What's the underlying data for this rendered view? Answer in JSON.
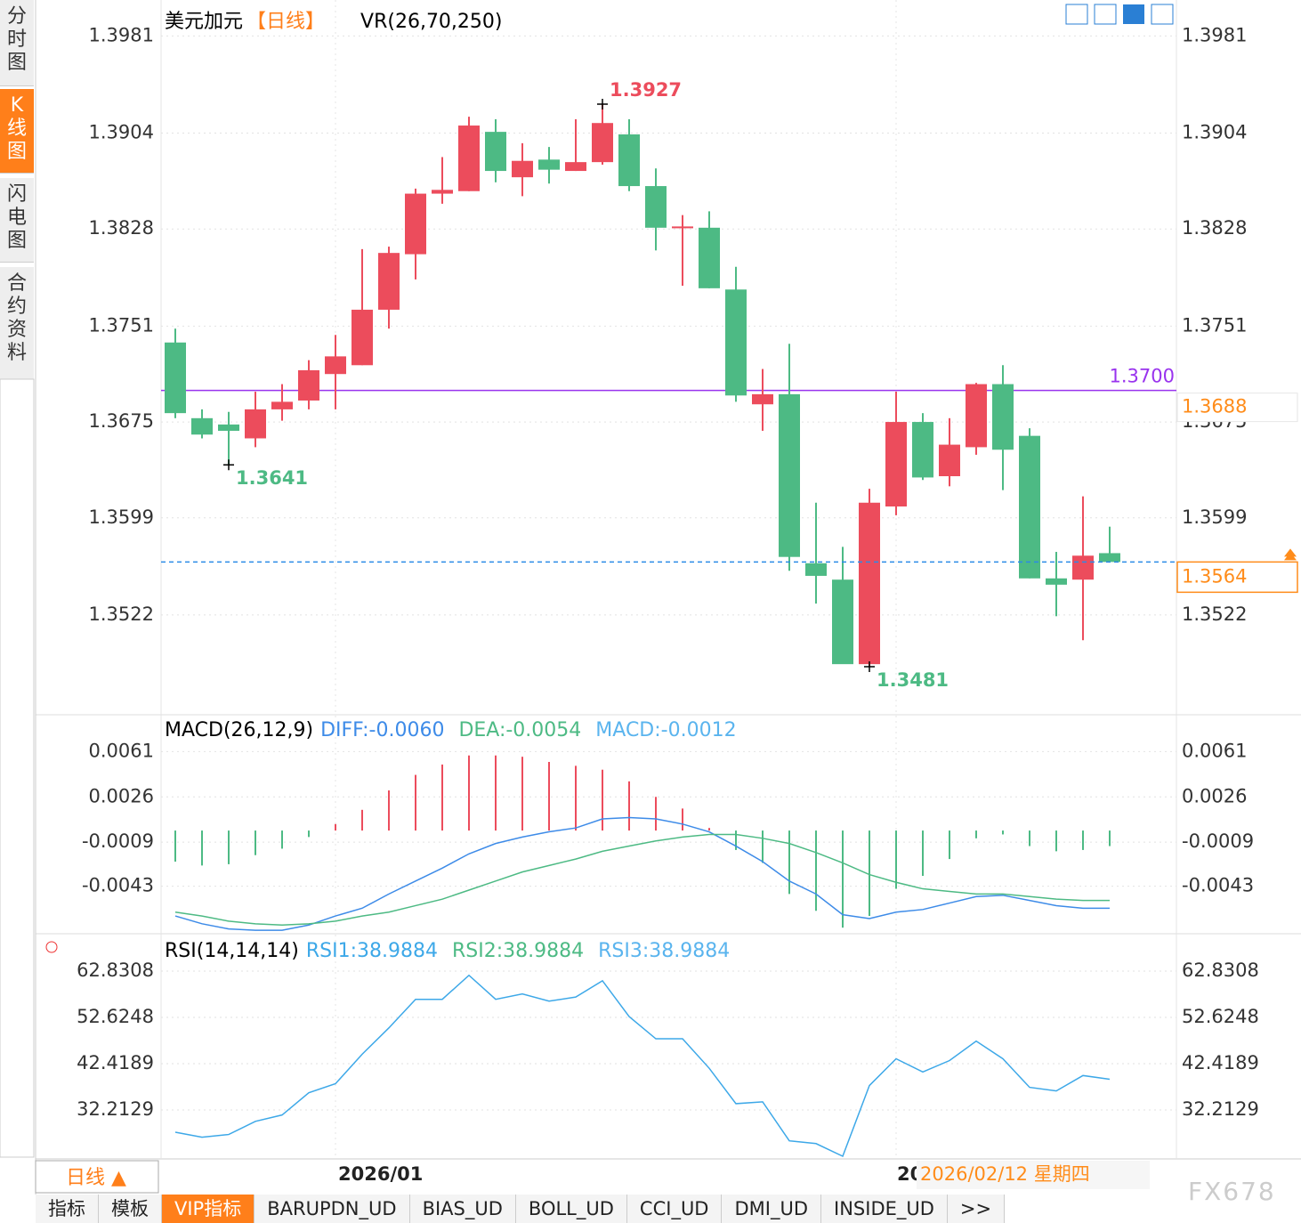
{
  "sidebar": [
    "分时图",
    "K线图",
    "闪电图",
    "合约资料"
  ],
  "chart_data": [
    {
      "type": "candlestick",
      "title": "美元加元",
      "period": "【日线】",
      "indicator": "VR(26,70,250)",
      "open": [
        1.3738,
        1.3678,
        1.3673,
        1.3662,
        1.3685,
        1.3692,
        1.3713,
        1.372,
        1.3764,
        1.3808,
        1.3856,
        1.3858,
        1.3905,
        1.3869,
        1.3883,
        1.3874,
        1.3881,
        1.3903,
        1.3862,
        1.3829,
        1.3829,
        1.378,
        1.3689,
        1.3697,
        1.3563,
        1.355,
        1.3483,
        1.3608,
        1.3675,
        1.3632,
        1.3655,
        1.3705,
        1.3664,
        1.3551,
        1.355,
        1.3571
      ],
      "high": [
        1.3749,
        1.3685,
        1.3683,
        1.3699,
        1.3705,
        1.3724,
        1.3744,
        1.3812,
        1.3814,
        1.386,
        1.3885,
        1.3917,
        1.3915,
        1.3896,
        1.3893,
        1.3915,
        1.3927,
        1.3915,
        1.3876,
        1.3839,
        1.3842,
        1.3798,
        1.3717,
        1.3737,
        1.3611,
        1.3576,
        1.3622,
        1.3699,
        1.3682,
        1.3678,
        1.3706,
        1.372,
        1.367,
        1.3572,
        1.3616,
        1.3592
      ],
      "low": [
        1.3678,
        1.3662,
        1.3641,
        1.3655,
        1.3676,
        1.3685,
        1.3685,
        1.372,
        1.3749,
        1.3788,
        1.3848,
        1.3858,
        1.3865,
        1.3854,
        1.3864,
        1.3874,
        1.3879,
        1.3858,
        1.3811,
        1.3783,
        1.3781,
        1.3691,
        1.3668,
        1.3557,
        1.3531,
        1.3484,
        1.3481,
        1.3601,
        1.3629,
        1.3624,
        1.3649,
        1.3621,
        1.3551,
        1.3521,
        1.3502,
        1.3564
      ],
      "close": [
        1.3682,
        1.3665,
        1.3668,
        1.3685,
        1.3691,
        1.3716,
        1.3727,
        1.3764,
        1.3809,
        1.3856,
        1.3859,
        1.391,
        1.3874,
        1.3882,
        1.3875,
        1.3881,
        1.3912,
        1.3862,
        1.3829,
        1.383,
        1.3781,
        1.3696,
        1.3697,
        1.3568,
        1.3553,
        1.3483,
        1.3611,
        1.3675,
        1.3631,
        1.3657,
        1.3705,
        1.3653,
        1.3551,
        1.3546,
        1.3569,
        1.3564
      ],
      "up_color": "#ec4c5c",
      "down_color": "#4dba84",
      "ylim": [
        1.3445,
        1.4006
      ],
      "yticks": [
        1.3981,
        1.3904,
        1.3828,
        1.3751,
        1.3675,
        1.3599,
        1.3522
      ],
      "hline": {
        "value": 1.37,
        "label": "1.3700",
        "color": "#9933ee"
      },
      "last_price": {
        "value": 1.3564,
        "label": "1.3564",
        "color": "#2b8be6"
      },
      "cursor_price": {
        "value": 1.3688,
        "label": "1.3688"
      },
      "annotations": [
        {
          "value": 1.3927,
          "label": "1.3927",
          "kind": "high"
        },
        {
          "value": 1.3641,
          "label": "1.3641",
          "kind": "low"
        },
        {
          "value": 1.3481,
          "label": "1.3481",
          "kind": "low"
        }
      ],
      "x_labels": [
        "2026/01",
        "20"
      ],
      "cursor_date": "2026/02/12 星期四",
      "period_button": "日线 ▲"
    },
    {
      "type": "macd",
      "title": "MACD(26,12,9)",
      "series": [
        {
          "label": "DIFF:-0.0060",
          "color": "#3d8be8",
          "values": [
            -0.0066,
            -0.0072,
            -0.0076,
            -0.0077,
            -0.0077,
            -0.0073,
            -0.0066,
            -0.006,
            -0.0049,
            -0.0039,
            -0.0029,
            -0.0018,
            -0.001,
            -0.0005,
            -0.0001,
            0.0002,
            0.0009,
            0.001,
            0.0009,
            0.0005,
            -0.0001,
            -0.0012,
            -0.0024,
            -0.0039,
            -0.0049,
            -0.0065,
            -0.0068,
            -0.0063,
            -0.0061,
            -0.0056,
            -0.0051,
            -0.005,
            -0.0054,
            -0.0058,
            -0.006,
            -0.006
          ]
        },
        {
          "label": "DEA:-0.0054",
          "color": "#4dba84",
          "values": [
            -0.0063,
            -0.0066,
            -0.007,
            -0.0072,
            -0.0073,
            -0.0072,
            -0.007,
            -0.0066,
            -0.0063,
            -0.0058,
            -0.0053,
            -0.0046,
            -0.0039,
            -0.0032,
            -0.0027,
            -0.0022,
            -0.0016,
            -0.0012,
            -0.0008,
            -0.0005,
            -0.0003,
            -0.0003,
            -0.0006,
            -0.001,
            -0.0017,
            -0.0025,
            -0.0034,
            -0.004,
            -0.0045,
            -0.0047,
            -0.0049,
            -0.0049,
            -0.0051,
            -0.0053,
            -0.0054,
            -0.0054
          ]
        }
      ],
      "histogram": {
        "label": "MACD:-0.0012",
        "color": "#5ab4ee",
        "values": [
          -0.0024,
          -0.0027,
          -0.0026,
          -0.0019,
          -0.0014,
          -0.0005,
          0.0005,
          0.0016,
          0.0031,
          0.0043,
          0.0051,
          0.0058,
          0.0058,
          0.0057,
          0.0053,
          0.005,
          0.0047,
          0.0038,
          0.0026,
          0.0017,
          0.0002,
          -0.0015,
          -0.0025,
          -0.0049,
          -0.0062,
          -0.0075,
          -0.0066,
          -0.0045,
          -0.0035,
          -0.0022,
          -0.0006,
          -0.0003,
          -0.0012,
          -0.0016,
          -0.0015,
          -0.0012
        ]
      },
      "ylim": [
        -0.0079,
        0.0086
      ],
      "yticks": [
        0.0061,
        0.0026,
        -0.0009,
        -0.0043
      ]
    },
    {
      "type": "line",
      "title": "RSI(14,14,14)",
      "series": [
        {
          "label": "RSI1:38.9884",
          "color": "#3da8e8",
          "values": [
            27.3,
            26.2,
            26.8,
            29.7,
            31.1,
            36.0,
            38.0,
            44.5,
            50.3,
            56.6,
            56.6,
            61.9,
            56.6,
            57.8,
            56.2,
            57.1,
            60.7,
            52.8,
            47.9,
            47.9,
            41.4,
            33.6,
            34.0,
            25.4,
            24.8,
            22.0,
            37.6,
            43.5,
            40.6,
            43.1,
            47.4,
            43.5,
            37.2,
            36.4,
            39.8,
            38.99
          ]
        },
        {
          "label": "RSI2:38.9884",
          "color": "#4dba84"
        },
        {
          "label": "RSI3:38.9884",
          "color": "#5ab4ee"
        }
      ],
      "ylim": [
        21.81,
        70.48
      ],
      "yticks": [
        62.8308,
        52.6248,
        42.4189,
        32.2129
      ]
    }
  ],
  "tabs": [
    "指标",
    "模板",
    "VIP指标",
    "BARUPDN_UD",
    "BIAS_UD",
    "BOLL_UD",
    "CCI_UD",
    "DMI_UD",
    "INSIDE_UD",
    ">>"
  ],
  "watermark": "FX678"
}
